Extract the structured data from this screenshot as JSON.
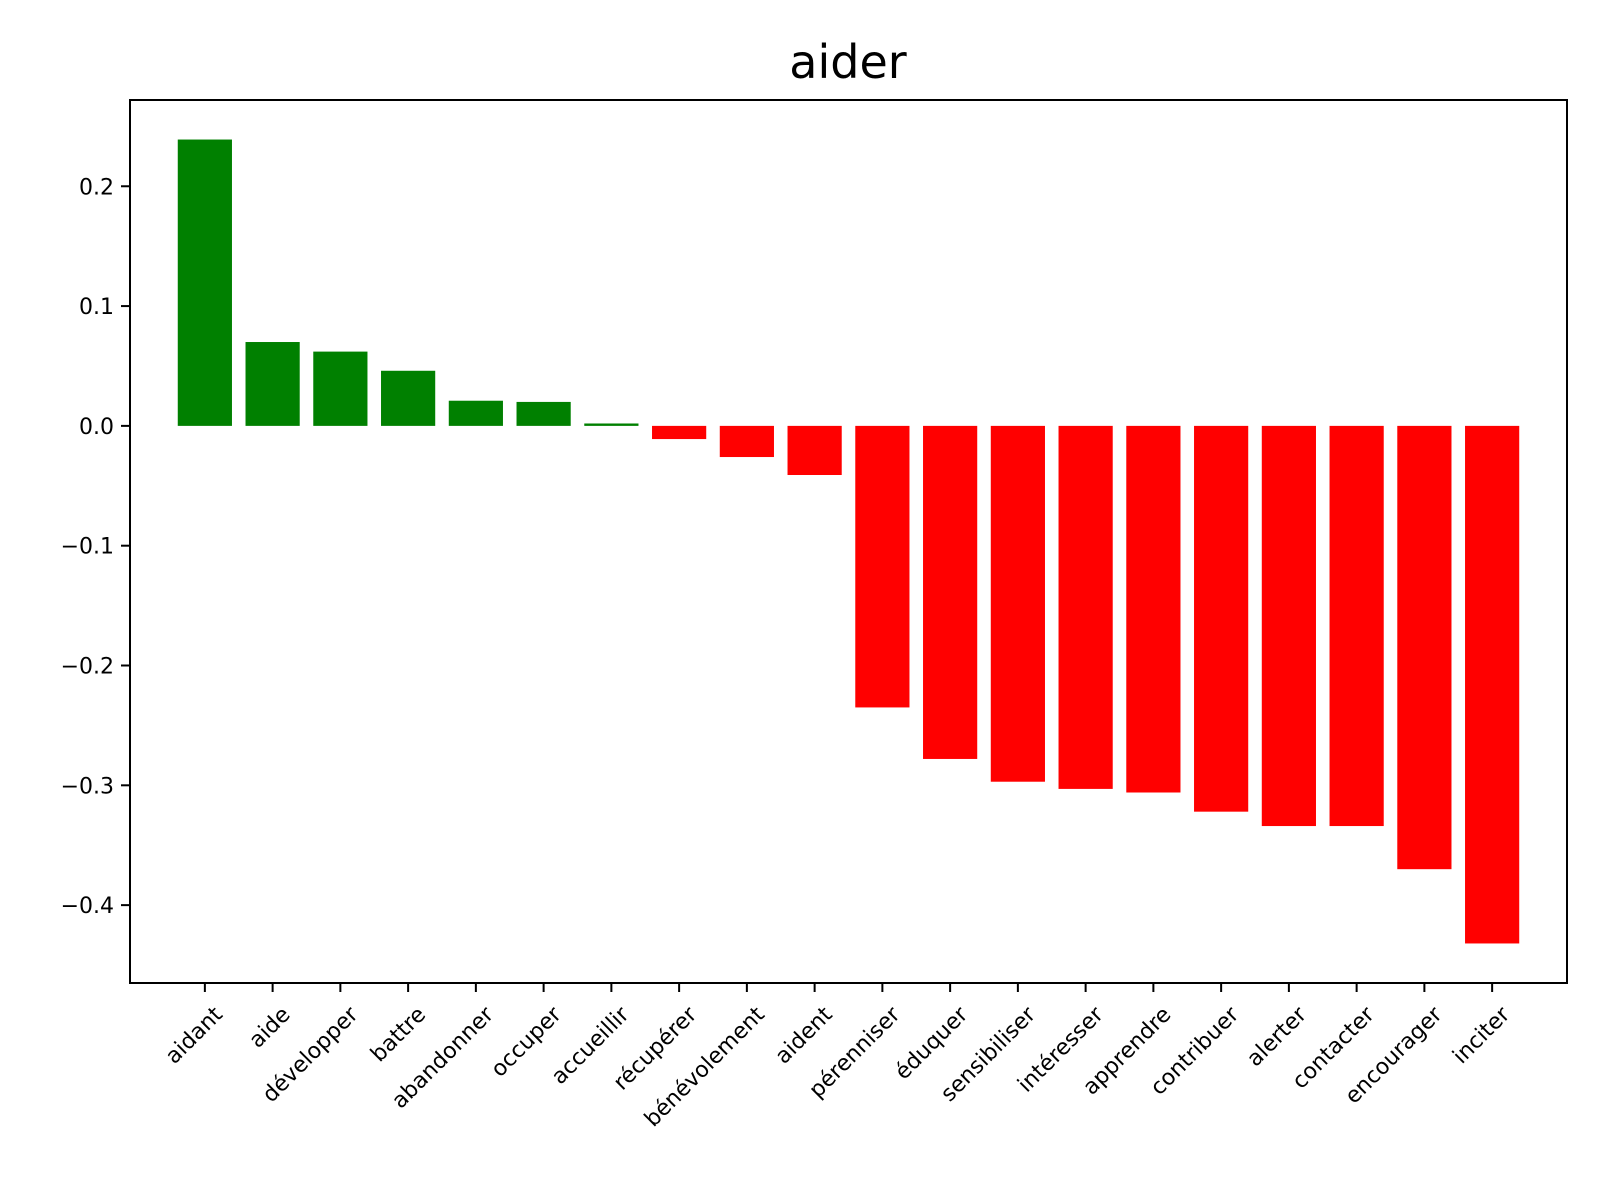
{
  "chart_data": {
    "type": "bar",
    "title": "aider",
    "xlabel": "",
    "ylabel": "",
    "categories": [
      "aidant",
      "aide",
      "développer",
      "battre",
      "abandonner",
      "occuper",
      "accueillir",
      "récupérer",
      "bénévolement",
      "aident",
      "pérenniser",
      "éduquer",
      "sensibiliser",
      "intéresser",
      "apprendre",
      "contribuer",
      "alerter",
      "contacter",
      "encourager",
      "inciter"
    ],
    "values": [
      0.239,
      0.07,
      0.062,
      0.046,
      0.021,
      0.02,
      0.002,
      -0.011,
      -0.026,
      -0.041,
      -0.235,
      -0.278,
      -0.297,
      -0.303,
      -0.306,
      -0.322,
      -0.334,
      -0.334,
      -0.37,
      -0.432
    ],
    "ylim": [
      -0.465,
      0.272
    ],
    "yticks": [
      0.2,
      0.1,
      0.0,
      -0.1,
      -0.2,
      -0.3,
      -0.4
    ],
    "ytick_labels": [
      "0.2",
      "0.1",
      "0.0",
      "−0.1",
      "−0.2",
      "−0.3",
      "−0.4"
    ],
    "positive_color": "#008000",
    "negative_color": "#ff0000",
    "grid": false,
    "legend": "none"
  }
}
